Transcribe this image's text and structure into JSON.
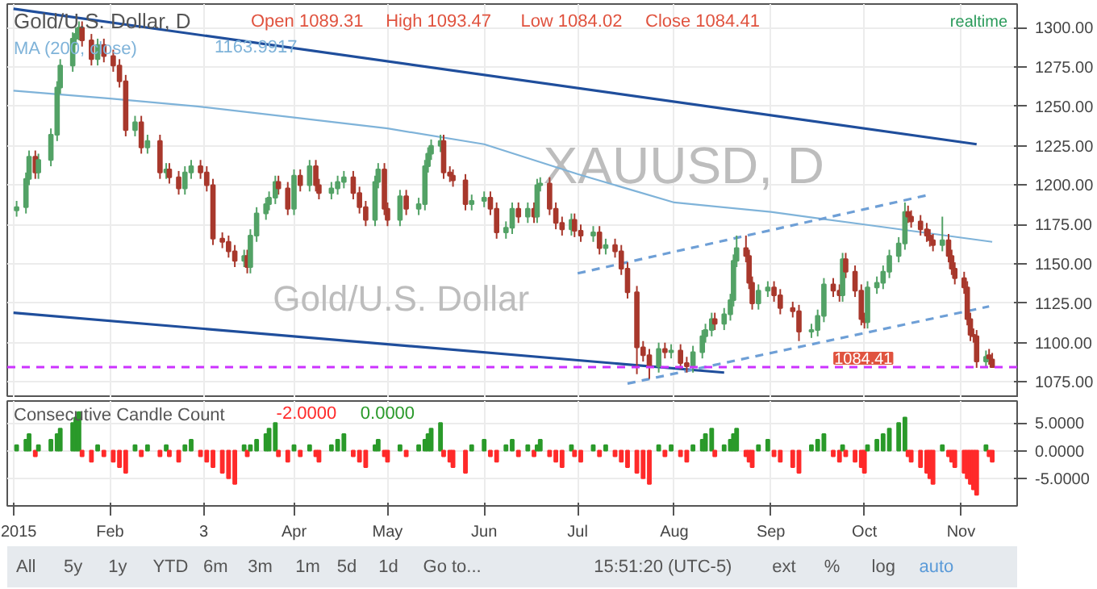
{
  "chart_data": [
    {
      "type": "candlestick",
      "title": "Gold/U.S. Dollar, D",
      "x": [
        "2015-01-02",
        "2015-01-05",
        "2015-01-06",
        "2015-01-08",
        "2015-01-09",
        "2015-01-13",
        "2015-01-15",
        "2015-01-16",
        "2015-01-20",
        "2015-01-21",
        "2015-01-22",
        "2015-01-23",
        "2015-01-26",
        "2015-01-28",
        "2015-01-30",
        "2015-02-02",
        "2015-02-04",
        "2015-02-06",
        "2015-02-09",
        "2015-02-11",
        "2015-02-13",
        "2015-02-17",
        "2015-02-19",
        "2015-02-20",
        "2015-02-23",
        "2015-02-25",
        "2015-02-27",
        "2015-03-02",
        "2015-03-04",
        "2015-03-06",
        "2015-03-09",
        "2015-03-11",
        "2015-03-13",
        "2015-03-16",
        "2015-03-17",
        "2015-03-18",
        "2015-03-20",
        "2015-03-23",
        "2015-03-24",
        "2015-03-26",
        "2015-03-27",
        "2015-03-30",
        "2015-04-01",
        "2015-04-03",
        "2015-04-06",
        "2015-04-08",
        "2015-04-09",
        "2015-04-13",
        "2015-04-15",
        "2015-04-17",
        "2015-04-20",
        "2015-04-22",
        "2015-04-24",
        "2015-04-27",
        "2015-04-28",
        "2015-04-30",
        "2015-05-01",
        "2015-05-05",
        "2015-05-07",
        "2015-05-11",
        "2015-05-13",
        "2015-05-14",
        "2015-05-15",
        "2015-05-18",
        "2015-05-19",
        "2015-05-21",
        "2015-05-22",
        "2015-05-26",
        "2015-05-28",
        "2015-06-01",
        "2015-06-03",
        "2015-06-05",
        "2015-06-08",
        "2015-06-10",
        "2015-06-12",
        "2015-06-15",
        "2015-06-17",
        "2015-06-18",
        "2015-06-19",
        "2015-06-22",
        "2015-06-24",
        "2015-06-26",
        "2015-06-29",
        "2015-06-30",
        "2015-07-02",
        "2015-07-06",
        "2015-07-08",
        "2015-07-10",
        "2015-07-13",
        "2015-07-15",
        "2015-07-17",
        "2015-07-20",
        "2015-07-22",
        "2015-07-24",
        "2015-07-27",
        "2015-07-29",
        "2015-07-31",
        "2015-08-03",
        "2015-08-05",
        "2015-08-07",
        "2015-08-10",
        "2015-08-11",
        "2015-08-13",
        "2015-08-14",
        "2015-08-17",
        "2015-08-19",
        "2015-08-20",
        "2015-08-21",
        "2015-08-24",
        "2015-08-25",
        "2015-08-26",
        "2015-08-28",
        "2015-08-31",
        "2015-09-02",
        "2015-09-04",
        "2015-09-08",
        "2015-09-10",
        "2015-09-14",
        "2015-09-16",
        "2015-09-18",
        "2015-09-21",
        "2015-09-23",
        "2015-09-24",
        "2015-09-25",
        "2015-09-28",
        "2015-09-30",
        "2015-10-01",
        "2015-10-02",
        "2015-10-05",
        "2015-10-07",
        "2015-10-09",
        "2015-10-12",
        "2015-10-14",
        "2015-10-15",
        "2015-10-16",
        "2015-10-19",
        "2015-10-21",
        "2015-10-22",
        "2015-10-23",
        "2015-10-26",
        "2015-10-28",
        "2015-10-29",
        "2015-10-30",
        "2015-11-02",
        "2015-11-03",
        "2015-11-04",
        "2015-11-05",
        "2015-11-06",
        "2015-11-09",
        "2015-11-10",
        "2015-11-11"
      ],
      "ohlc": [
        [
          1184,
          1190,
          1180,
          1186
        ],
        [
          1186,
          1208,
          1182,
          1204
        ],
        [
          1204,
          1222,
          1200,
          1218
        ],
        [
          1218,
          1222,
          1204,
          1208
        ],
        [
          1208,
          1220,
          1204,
          1216
        ],
        [
          1216,
          1236,
          1212,
          1232
        ],
        [
          1232,
          1266,
          1228,
          1262
        ],
        [
          1262,
          1280,
          1258,
          1276
        ],
        [
          1276,
          1297,
          1272,
          1293
        ],
        [
          1293,
          1300,
          1289,
          1296
        ],
        [
          1296,
          1304,
          1292,
          1300
        ],
        [
          1300,
          1304,
          1288,
          1292
        ],
        [
          1292,
          1296,
          1276,
          1280
        ],
        [
          1280,
          1293,
          1276,
          1289
        ],
        [
          1289,
          1293,
          1278,
          1282
        ],
        [
          1282,
          1286,
          1272,
          1276
        ],
        [
          1276,
          1280,
          1262,
          1266
        ],
        [
          1266,
          1270,
          1231,
          1235
        ],
        [
          1235,
          1244,
          1231,
          1240
        ],
        [
          1240,
          1244,
          1220,
          1224
        ],
        [
          1224,
          1232,
          1220,
          1228
        ],
        [
          1228,
          1232,
          1204,
          1208
        ],
        [
          1208,
          1214,
          1204,
          1210
        ],
        [
          1210,
          1214,
          1201,
          1205
        ],
        [
          1205,
          1209,
          1194,
          1198
        ],
        [
          1198,
          1212,
          1194,
          1208
        ],
        [
          1208,
          1216,
          1204,
          1212
        ],
        [
          1212,
          1216,
          1204,
          1208
        ],
        [
          1208,
          1212,
          1196,
          1200
        ],
        [
          1200,
          1204,
          1162,
          1166
        ],
        [
          1166,
          1170,
          1160,
          1164
        ],
        [
          1164,
          1168,
          1154,
          1158
        ],
        [
          1158,
          1162,
          1148,
          1152
        ],
        [
          1152,
          1159,
          1148,
          1155
        ],
        [
          1155,
          1159,
          1144,
          1148
        ],
        [
          1148,
          1172,
          1144,
          1168
        ],
        [
          1168,
          1186,
          1164,
          1182
        ],
        [
          1182,
          1192,
          1178,
          1188
        ],
        [
          1188,
          1196,
          1184,
          1192
        ],
        [
          1192,
          1206,
          1188,
          1202
        ],
        [
          1202,
          1206,
          1194,
          1198
        ],
        [
          1198,
          1202,
          1181,
          1185
        ],
        [
          1185,
          1210,
          1181,
          1206
        ],
        [
          1206,
          1210,
          1196,
          1200
        ],
        [
          1200,
          1216,
          1196,
          1212
        ],
        [
          1212,
          1216,
          1196,
          1200
        ],
        [
          1200,
          1204,
          1191,
          1195
        ],
        [
          1195,
          1202,
          1191,
          1198
        ],
        [
          1198,
          1206,
          1194,
          1202
        ],
        [
          1202,
          1209,
          1198,
          1205
        ],
        [
          1205,
          1209,
          1191,
          1195
        ],
        [
          1195,
          1199,
          1182,
          1186
        ],
        [
          1186,
          1190,
          1174,
          1178
        ],
        [
          1178,
          1206,
          1174,
          1202
        ],
        [
          1202,
          1214,
          1198,
          1210
        ],
        [
          1210,
          1214,
          1181,
          1185
        ],
        [
          1185,
          1189,
          1174,
          1178
        ],
        [
          1178,
          1197,
          1174,
          1193
        ],
        [
          1193,
          1197,
          1181,
          1185
        ],
        [
          1185,
          1192,
          1181,
          1188
        ],
        [
          1188,
          1216,
          1184,
          1212
        ],
        [
          1212,
          1224,
          1208,
          1220
        ],
        [
          1220,
          1229,
          1216,
          1225
        ],
        [
          1225,
          1232,
          1221,
          1228
        ],
        [
          1228,
          1232,
          1204,
          1208
        ],
        [
          1208,
          1212,
          1202,
          1206
        ],
        [
          1206,
          1210,
          1199,
          1203
        ],
        [
          1203,
          1207,
          1184,
          1188
        ],
        [
          1188,
          1194,
          1184,
          1190
        ],
        [
          1190,
          1196,
          1186,
          1192
        ],
        [
          1192,
          1196,
          1181,
          1185
        ],
        [
          1185,
          1189,
          1166,
          1170
        ],
        [
          1170,
          1177,
          1166,
          1173
        ],
        [
          1173,
          1189,
          1169,
          1185
        ],
        [
          1185,
          1189,
          1176,
          1180
        ],
        [
          1180,
          1189,
          1176,
          1185
        ],
        [
          1185,
          1189,
          1176,
          1180
        ],
        [
          1180,
          1204,
          1176,
          1200
        ],
        [
          1200,
          1205,
          1196,
          1201
        ],
        [
          1201,
          1205,
          1181,
          1185
        ],
        [
          1185,
          1189,
          1172,
          1176
        ],
        [
          1176,
          1180,
          1168,
          1172
        ],
        [
          1172,
          1182,
          1168,
          1178
        ],
        [
          1178,
          1182,
          1167,
          1171
        ],
        [
          1171,
          1175,
          1164,
          1168
        ],
        [
          1168,
          1174,
          1164,
          1170
        ],
        [
          1170,
          1174,
          1156,
          1160
        ],
        [
          1160,
          1166,
          1156,
          1162
        ],
        [
          1162,
          1166,
          1154,
          1158
        ],
        [
          1158,
          1162,
          1143,
          1147
        ],
        [
          1147,
          1151,
          1128,
          1132
        ],
        [
          1132,
          1136,
          1080,
          1097
        ],
        [
          1097,
          1101,
          1088,
          1092
        ],
        [
          1092,
          1096,
          1077,
          1085
        ],
        [
          1085,
          1100,
          1081,
          1096
        ],
        [
          1096,
          1100,
          1090,
          1094
        ],
        [
          1094,
          1099,
          1090,
          1095
        ],
        [
          1095,
          1099,
          1083,
          1087
        ],
        [
          1087,
          1091,
          1081,
          1085
        ],
        [
          1085,
          1098,
          1081,
          1094
        ],
        [
          1094,
          1108,
          1090,
          1104
        ],
        [
          1104,
          1112,
          1100,
          1108
        ],
        [
          1108,
          1119,
          1104,
          1115
        ],
        [
          1115,
          1119,
          1108,
          1112
        ],
        [
          1112,
          1122,
          1108,
          1118
        ],
        [
          1118,
          1131,
          1114,
          1127
        ],
        [
          1127,
          1156,
          1123,
          1152
        ],
        [
          1152,
          1168,
          1148,
          1160
        ],
        [
          1160,
          1168,
          1151,
          1155
        ],
        [
          1155,
          1159,
          1134,
          1138
        ],
        [
          1138,
          1142,
          1121,
          1125
        ],
        [
          1125,
          1137,
          1121,
          1133
        ],
        [
          1133,
          1139,
          1129,
          1135
        ],
        [
          1135,
          1139,
          1126,
          1130
        ],
        [
          1130,
          1134,
          1118,
          1122
        ],
        [
          1122,
          1126,
          1116,
          1120
        ],
        [
          1120,
          1124,
          1101,
          1107
        ],
        [
          1107,
          1112,
          1103,
          1108
        ],
        [
          1108,
          1121,
          1104,
          1117
        ],
        [
          1117,
          1141,
          1113,
          1137
        ],
        [
          1137,
          1141,
          1129,
          1133
        ],
        [
          1133,
          1137,
          1126,
          1130
        ],
        [
          1130,
          1157,
          1126,
          1153
        ],
        [
          1153,
          1157,
          1141,
          1145
        ],
        [
          1145,
          1149,
          1129,
          1133
        ],
        [
          1133,
          1137,
          1111,
          1115
        ],
        [
          1115,
          1119,
          1109,
          1113
        ],
        [
          1113,
          1139,
          1109,
          1135
        ],
        [
          1135,
          1142,
          1131,
          1138
        ],
        [
          1138,
          1149,
          1134,
          1145
        ],
        [
          1145,
          1159,
          1141,
          1155
        ],
        [
          1155,
          1167,
          1151,
          1163
        ],
        [
          1163,
          1189,
          1159,
          1183
        ],
        [
          1183,
          1187,
          1176,
          1180
        ],
        [
          1180,
          1184,
          1173,
          1177
        ],
        [
          1177,
          1181,
          1168,
          1172
        ],
        [
          1172,
          1176,
          1164,
          1168
        ],
        [
          1168,
          1172,
          1161,
          1165
        ],
        [
          1165,
          1169,
          1158,
          1162
        ],
        [
          1162,
          1180,
          1158,
          1165
        ],
        [
          1165,
          1169,
          1151,
          1155
        ],
        [
          1155,
          1159,
          1143,
          1147
        ],
        [
          1147,
          1151,
          1137,
          1141
        ],
        [
          1141,
          1145,
          1131,
          1135
        ],
        [
          1135,
          1139,
          1111,
          1115
        ],
        [
          1115,
          1119,
          1101,
          1105
        ],
        [
          1105,
          1109,
          1100,
          1104
        ],
        [
          1104,
          1108,
          1084,
          1088
        ],
        [
          1088,
          1095,
          1084,
          1091
        ],
        [
          1092,
          1096,
          1086,
          1090
        ],
        [
          1089.31,
          1093.47,
          1084.02,
          1084.41
        ]
      ],
      "colors": [
        "#53a266",
        "#53a266",
        "#53a266",
        "#a8382c",
        "#53a266",
        "#53a266",
        "#53a266",
        "#53a266",
        "#53a266",
        "#53a266",
        "#53a266",
        "#a8382c",
        "#a8382c",
        "#53a266",
        "#a8382c",
        "#a8382c",
        "#a8382c",
        "#a8382c",
        "#53a266",
        "#a8382c",
        "#53a266",
        "#a8382c",
        "#53a266",
        "#a8382c",
        "#a8382c",
        "#53a266",
        "#53a266",
        "#a8382c",
        "#a8382c",
        "#a8382c",
        "#a8382c",
        "#a8382c",
        "#a8382c",
        "#53a266",
        "#a8382c",
        "#53a266",
        "#53a266",
        "#53a266",
        "#53a266",
        "#53a266",
        "#a8382c",
        "#a8382c",
        "#53a266",
        "#a8382c",
        "#53a266",
        "#a8382c",
        "#a8382c",
        "#53a266",
        "#53a266",
        "#53a266",
        "#a8382c",
        "#a8382c",
        "#a8382c",
        "#53a266",
        "#53a266",
        "#a8382c",
        "#a8382c",
        "#53a266",
        "#a8382c",
        "#53a266",
        "#53a266",
        "#53a266",
        "#53a266",
        "#53a266",
        "#a8382c",
        "#a8382c",
        "#a8382c",
        "#a8382c",
        "#53a266",
        "#53a266",
        "#a8382c",
        "#a8382c",
        "#53a266",
        "#53a266",
        "#a8382c",
        "#53a266",
        "#a8382c",
        "#53a266",
        "#53a266",
        "#a8382c",
        "#a8382c",
        "#a8382c",
        "#53a266",
        "#a8382c",
        "#a8382c",
        "#53a266",
        "#a8382c",
        "#53a266",
        "#a8382c",
        "#a8382c",
        "#a8382c",
        "#a8382c",
        "#a8382c",
        "#a8382c",
        "#53a266",
        "#a8382c",
        "#53a266",
        "#a8382c",
        "#a8382c",
        "#53a266",
        "#53a266",
        "#53a266",
        "#53a266",
        "#a8382c",
        "#53a266",
        "#53a266",
        "#53a266",
        "#53a266",
        "#a8382c",
        "#a8382c",
        "#a8382c",
        "#53a266",
        "#53a266",
        "#a8382c",
        "#a8382c",
        "#a8382c",
        "#a8382c",
        "#53a266",
        "#53a266",
        "#53a266",
        "#a8382c",
        "#a8382c",
        "#53a266",
        "#a8382c",
        "#a8382c",
        "#a8382c",
        "#a8382c",
        "#53a266",
        "#53a266",
        "#53a266",
        "#53a266",
        "#53a266",
        "#53a266",
        "#a8382c",
        "#a8382c",
        "#a8382c",
        "#a8382c",
        "#a8382c",
        "#a8382c",
        "#53a266",
        "#a8382c",
        "#a8382c",
        "#a8382c",
        "#a8382c",
        "#a8382c",
        "#a8382c",
        "#a8382c",
        "#a8382c",
        "#53a266",
        "#a8382c",
        "#a8382c"
      ],
      "series": [
        {
          "name": "MA (200, close)",
          "type": "line",
          "color": "#7fb3d9",
          "x": [
            "2015-01-01",
            "2015-02-01",
            "2015-03-01",
            "2015-04-01",
            "2015-05-01",
            "2015-06-01",
            "2015-07-01",
            "2015-08-01",
            "2015-09-01",
            "2015-10-01",
            "2015-11-11"
          ],
          "values": [
            1260,
            1255,
            1250,
            1243,
            1236,
            1226,
            1207,
            1189,
            1183,
            1175,
            1164
          ]
        },
        {
          "type": "line",
          "color": "#1f4e9c",
          "x": [
            "2015-01-01",
            "2015-11-06"
          ],
          "values": [
            1312,
            1226
          ]
        },
        {
          "type": "line",
          "color": "#1f4e9c",
          "x": [
            "2015-01-01",
            "2015-08-17"
          ],
          "values": [
            1119,
            1081
          ]
        },
        {
          "type": "line",
          "color": "#6e9fd6",
          "line_style": "dashed",
          "x": [
            "2015-07-01",
            "2015-10-22"
          ],
          "values": [
            1144,
            1194
          ]
        },
        {
          "type": "line",
          "color": "#6e9fd6",
          "line_style": "dashed",
          "x": [
            "2015-07-17",
            "2015-11-10"
          ],
          "values": [
            1074,
            1123
          ]
        }
      ],
      "ref_lines": [
        {
          "axis": "y",
          "value": 1084.41,
          "label": "1084.41",
          "color": "#cc33ff",
          "line_style": "dashed"
        }
      ],
      "annotations": [
        "Open 1089.31",
        "High 1093.47",
        "Low 1084.02",
        "Close 1084.41",
        "1163.9917",
        "XAUUSD, D",
        "Gold/U.S. Dollar",
        "realtime"
      ],
      "xlim": [
        "2014-12-30",
        "2015-11-19"
      ],
      "ylim": [
        1065,
        1315
      ],
      "xticks": [
        {
          "value": "2015-01-01",
          "label": null
        },
        {
          "value": "2015-02-01",
          "label": null
        },
        {
          "value": "2015-03-03",
          "label": null
        },
        {
          "value": "2015-04-01",
          "label": null
        },
        {
          "value": "2015-05-01",
          "label": null
        },
        {
          "value": "2015-06-01",
          "label": null
        },
        {
          "value": "2015-07-01",
          "label": null
        },
        {
          "value": "2015-08-01",
          "label": null
        },
        {
          "value": "2015-09-01",
          "label": null
        },
        {
          "value": "2015-10-01",
          "label": null
        },
        {
          "value": "2015-11-01",
          "label": null
        }
      ],
      "yticks": [
        {
          "value": 1075,
          "label": "1075.00"
        },
        {
          "value": 1100,
          "label": "1100.00"
        },
        {
          "value": 1125,
          "label": "1125.00"
        },
        {
          "value": 1150,
          "label": "1150.00"
        },
        {
          "value": 1175,
          "label": "1175.00"
        },
        {
          "value": 1200,
          "label": "1200.00"
        },
        {
          "value": 1225,
          "label": "1225.00"
        },
        {
          "value": 1250,
          "label": "1250.00"
        },
        {
          "value": 1275,
          "label": "1275.00"
        },
        {
          "value": 1300,
          "label": "1300.00"
        }
      ],
      "grid": true,
      "tick_labels": "y"
    },
    {
      "type": "bar",
      "title": "Consecutive Candle Count",
      "x": [
        "2015-01-02",
        "2015-01-05",
        "2015-01-06",
        "2015-01-08",
        "2015-01-09",
        "2015-01-13",
        "2015-01-15",
        "2015-01-16",
        "2015-01-20",
        "2015-01-21",
        "2015-01-22",
        "2015-01-23",
        "2015-01-26",
        "2015-01-28",
        "2015-01-30",
        "2015-02-02",
        "2015-02-04",
        "2015-02-06",
        "2015-02-09",
        "2015-02-11",
        "2015-02-13",
        "2015-02-17",
        "2015-02-19",
        "2015-02-20",
        "2015-02-23",
        "2015-02-25",
        "2015-02-27",
        "2015-03-02",
        "2015-03-04",
        "2015-03-06",
        "2015-03-09",
        "2015-03-11",
        "2015-03-13",
        "2015-03-16",
        "2015-03-17",
        "2015-03-18",
        "2015-03-20",
        "2015-03-23",
        "2015-03-24",
        "2015-03-26",
        "2015-03-27",
        "2015-03-30",
        "2015-04-01",
        "2015-04-03",
        "2015-04-06",
        "2015-04-08",
        "2015-04-09",
        "2015-04-13",
        "2015-04-15",
        "2015-04-17",
        "2015-04-20",
        "2015-04-22",
        "2015-04-24",
        "2015-04-27",
        "2015-04-28",
        "2015-04-30",
        "2015-05-01",
        "2015-05-05",
        "2015-05-07",
        "2015-05-11",
        "2015-05-13",
        "2015-05-14",
        "2015-05-15",
        "2015-05-18",
        "2015-05-19",
        "2015-05-21",
        "2015-05-22",
        "2015-05-26",
        "2015-05-28",
        "2015-06-01",
        "2015-06-03",
        "2015-06-05",
        "2015-06-08",
        "2015-06-10",
        "2015-06-12",
        "2015-06-15",
        "2015-06-17",
        "2015-06-18",
        "2015-06-19",
        "2015-06-22",
        "2015-06-24",
        "2015-06-26",
        "2015-06-29",
        "2015-06-30",
        "2015-07-02",
        "2015-07-06",
        "2015-07-08",
        "2015-07-10",
        "2015-07-13",
        "2015-07-15",
        "2015-07-17",
        "2015-07-20",
        "2015-07-22",
        "2015-07-24",
        "2015-07-27",
        "2015-07-29",
        "2015-07-31",
        "2015-08-03",
        "2015-08-05",
        "2015-08-07",
        "2015-08-10",
        "2015-08-11",
        "2015-08-13",
        "2015-08-14",
        "2015-08-17",
        "2015-08-19",
        "2015-08-20",
        "2015-08-21",
        "2015-08-24",
        "2015-08-25",
        "2015-08-26",
        "2015-08-28",
        "2015-08-31",
        "2015-09-02",
        "2015-09-04",
        "2015-09-08",
        "2015-09-10",
        "2015-09-14",
        "2015-09-16",
        "2015-09-18",
        "2015-09-21",
        "2015-09-23",
        "2015-09-24",
        "2015-09-25",
        "2015-09-28",
        "2015-09-30",
        "2015-10-01",
        "2015-10-02",
        "2015-10-05",
        "2015-10-07",
        "2015-10-09",
        "2015-10-12",
        "2015-10-14",
        "2015-10-15",
        "2015-10-16",
        "2015-10-19",
        "2015-10-21",
        "2015-10-22",
        "2015-10-23",
        "2015-10-26",
        "2015-10-28",
        "2015-10-29",
        "2015-10-30",
        "2015-11-02",
        "2015-11-03",
        "2015-11-04",
        "2015-11-05",
        "2015-11-06",
        "2015-11-09",
        "2015-11-10",
        "2015-11-11"
      ],
      "values": [
        1,
        2,
        3,
        -1,
        1,
        2,
        3,
        4,
        5,
        6,
        7,
        -1,
        -2,
        1,
        -1,
        -2,
        -3,
        -4,
        1,
        -1,
        1,
        -1,
        1,
        -1,
        -2,
        1,
        2,
        -1,
        -2,
        -3,
        -4,
        -5,
        -6,
        1,
        -1,
        1,
        2,
        3,
        4,
        5,
        -1,
        -2,
        1,
        -1,
        1,
        -1,
        -2,
        1,
        2,
        3,
        -1,
        -2,
        -3,
        1,
        2,
        -1,
        -2,
        1,
        -1,
        1,
        2,
        3,
        4,
        5,
        -1,
        -2,
        -3,
        -4,
        1,
        2,
        -1,
        -2,
        1,
        2,
        -1,
        1,
        -1,
        1,
        2,
        -1,
        -2,
        -3,
        1,
        -1,
        -2,
        1,
        -1,
        1,
        -1,
        -2,
        -3,
        -4,
        -5,
        -6,
        1,
        -1,
        1,
        -1,
        -2,
        1,
        2,
        3,
        4,
        -1,
        1,
        2,
        3,
        4,
        -1,
        -2,
        -3,
        1,
        2,
        -1,
        -2,
        -3,
        -4,
        1,
        2,
        3,
        -1,
        -2,
        1,
        -1,
        -2,
        -3,
        -4,
        1,
        2,
        3,
        4,
        5,
        6,
        -1,
        -2,
        -3,
        -4,
        -5,
        -6,
        1,
        -1,
        -2,
        -3,
        -4,
        -5,
        -6,
        -7,
        -8,
        1,
        -1,
        -2
      ],
      "colors": [
        "#2a9a2a",
        "#2a9a2a",
        "#2a9a2a",
        "#ff2a2a",
        "#2a9a2a",
        "#2a9a2a",
        "#2a9a2a",
        "#2a9a2a",
        "#2a9a2a",
        "#2a9a2a",
        "#2a9a2a",
        "#ff2a2a",
        "#ff2a2a",
        "#2a9a2a",
        "#ff2a2a",
        "#ff2a2a",
        "#ff2a2a",
        "#ff2a2a",
        "#2a9a2a",
        "#ff2a2a",
        "#2a9a2a",
        "#ff2a2a",
        "#2a9a2a",
        "#ff2a2a",
        "#ff2a2a",
        "#2a9a2a",
        "#2a9a2a",
        "#ff2a2a",
        "#ff2a2a",
        "#ff2a2a",
        "#ff2a2a",
        "#ff2a2a",
        "#ff2a2a",
        "#2a9a2a",
        "#ff2a2a",
        "#2a9a2a",
        "#2a9a2a",
        "#2a9a2a",
        "#2a9a2a",
        "#2a9a2a",
        "#ff2a2a",
        "#ff2a2a",
        "#2a9a2a",
        "#ff2a2a",
        "#2a9a2a",
        "#ff2a2a",
        "#ff2a2a",
        "#2a9a2a",
        "#2a9a2a",
        "#2a9a2a",
        "#ff2a2a",
        "#ff2a2a",
        "#ff2a2a",
        "#2a9a2a",
        "#2a9a2a",
        "#ff2a2a",
        "#ff2a2a",
        "#2a9a2a",
        "#ff2a2a",
        "#2a9a2a",
        "#2a9a2a",
        "#2a9a2a",
        "#2a9a2a",
        "#2a9a2a",
        "#ff2a2a",
        "#ff2a2a",
        "#ff2a2a",
        "#ff2a2a",
        "#2a9a2a",
        "#2a9a2a",
        "#ff2a2a",
        "#ff2a2a",
        "#2a9a2a",
        "#2a9a2a",
        "#ff2a2a",
        "#2a9a2a",
        "#ff2a2a",
        "#2a9a2a",
        "#2a9a2a",
        "#ff2a2a",
        "#ff2a2a",
        "#ff2a2a",
        "#2a9a2a",
        "#ff2a2a",
        "#ff2a2a",
        "#2a9a2a",
        "#ff2a2a",
        "#2a9a2a",
        "#ff2a2a",
        "#ff2a2a",
        "#ff2a2a",
        "#ff2a2a",
        "#ff2a2a",
        "#ff2a2a",
        "#2a9a2a",
        "#ff2a2a",
        "#2a9a2a",
        "#ff2a2a",
        "#ff2a2a",
        "#2a9a2a",
        "#2a9a2a",
        "#2a9a2a",
        "#2a9a2a",
        "#ff2a2a",
        "#2a9a2a",
        "#2a9a2a",
        "#2a9a2a",
        "#2a9a2a",
        "#ff2a2a",
        "#ff2a2a",
        "#ff2a2a",
        "#2a9a2a",
        "#2a9a2a",
        "#ff2a2a",
        "#ff2a2a",
        "#ff2a2a",
        "#ff2a2a",
        "#2a9a2a",
        "#2a9a2a",
        "#2a9a2a",
        "#ff2a2a",
        "#ff2a2a",
        "#2a9a2a",
        "#ff2a2a",
        "#ff2a2a",
        "#ff2a2a",
        "#ff2a2a",
        "#2a9a2a",
        "#2a9a2a",
        "#2a9a2a",
        "#2a9a2a",
        "#2a9a2a",
        "#2a9a2a",
        "#ff2a2a",
        "#ff2a2a",
        "#ff2a2a",
        "#ff2a2a",
        "#ff2a2a",
        "#ff2a2a",
        "#2a9a2a",
        "#ff2a2a",
        "#ff2a2a",
        "#ff2a2a",
        "#ff2a2a",
        "#ff2a2a",
        "#ff2a2a",
        "#ff2a2a",
        "#ff2a2a",
        "#2a9a2a",
        "#ff2a2a",
        "#ff2a2a"
      ],
      "annotations": [
        "-2.0000",
        "0.0000",
        "All",
        "5y",
        "1y",
        "YTD",
        "6m",
        "3m",
        "1m",
        "5d",
        "1d",
        "Go to...",
        "15:51:20 (UTC-5)",
        "ext",
        "%",
        "log",
        "auto"
      ],
      "xlim": [
        "2014-12-30",
        "2015-11-19"
      ],
      "ylim": [
        -10,
        9
      ],
      "xticks": [
        {
          "value": "2015-01-01",
          "label": "2015"
        },
        {
          "value": "2015-02-01",
          "label": "Feb"
        },
        {
          "value": "2015-03-03",
          "label": "3"
        },
        {
          "value": "2015-04-01",
          "label": "Apr"
        },
        {
          "value": "2015-05-01",
          "label": "May"
        },
        {
          "value": "2015-06-01",
          "label": "Jun"
        },
        {
          "value": "2015-07-01",
          "label": "Jul"
        },
        {
          "value": "2015-08-01",
          "label": "Aug"
        },
        {
          "value": "2015-09-01",
          "label": "Sep"
        },
        {
          "value": "2015-10-01",
          "label": "Oct"
        },
        {
          "value": "2015-11-01",
          "label": "Nov"
        }
      ],
      "yticks": [
        {
          "value": -5,
          "label": "-5.0000"
        },
        {
          "value": 0,
          "label": "0.0000"
        },
        {
          "value": 5,
          "label": "5.0000"
        }
      ],
      "grid": true
    }
  ]
}
